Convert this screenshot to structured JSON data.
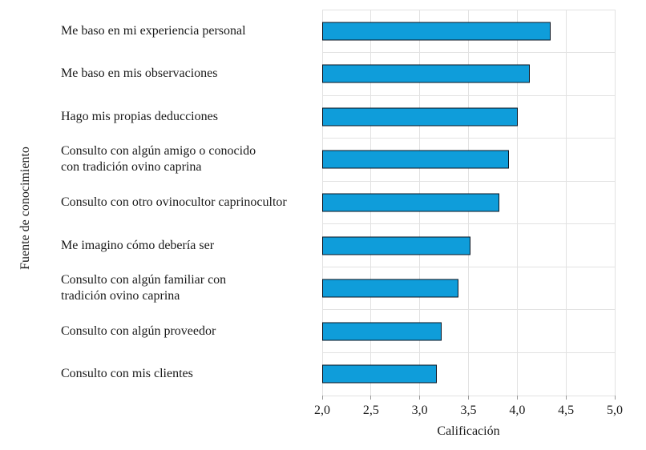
{
  "chart_data": {
    "type": "bar",
    "orientation": "horizontal",
    "title": "",
    "xlabel": "Calificación",
    "ylabel": "Fuente de conocimiento",
    "categories": [
      "Me baso en mi experiencia personal",
      "Me baso en mis observaciones",
      "Hago mis propias deducciones",
      "Consulto con algún amigo o conocido\ncon tradición ovino caprina",
      "Consulto con otro ovinocultor caprinocultor",
      "Me imagino cómo debería ser",
      "Consulto con algún familiar con\ntradición ovino caprina",
      "Consulto con algún proveedor",
      "Consulto con mis clientes"
    ],
    "values": [
      4.33,
      4.11,
      3.99,
      3.9,
      3.8,
      3.5,
      3.38,
      3.21,
      3.16
    ],
    "xlim": [
      2.0,
      5.0
    ],
    "xticks": [
      2.0,
      2.5,
      3.0,
      3.5,
      4.0,
      4.5,
      5.0
    ],
    "xtick_labels": [
      "2,0",
      "2,5",
      "3,0",
      "3,5",
      "4,0",
      "4,5",
      "5,0"
    ],
    "grid": true,
    "legend": "none",
    "colors": {
      "bar_fill": "#0f9dda",
      "bar_border": "#0b1420",
      "gridline": "#e2e2e2",
      "tick": "#999999",
      "text": "#1a1a1a"
    }
  }
}
